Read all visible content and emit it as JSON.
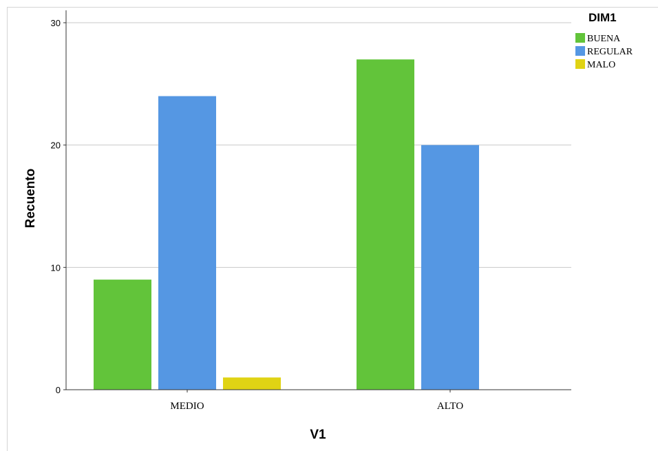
{
  "chart_data": {
    "type": "bar",
    "categories": [
      "MEDIO",
      "ALTO"
    ],
    "series": [
      {
        "name": "BUENA",
        "values": [
          9,
          27
        ],
        "color": "#62c43a"
      },
      {
        "name": "REGULAR",
        "values": [
          24,
          20
        ],
        "color": "#5597e3"
      },
      {
        "name": "MALO",
        "values": [
          1,
          0
        ],
        "color": "#e0d314"
      }
    ],
    "xlabel": "V1",
    "ylabel": "Recuento",
    "ylim": [
      0,
      30
    ],
    "yticks": [
      0,
      10,
      20,
      30
    ],
    "legend_title": "DIM1",
    "legend_position": "top-right",
    "grid": true
  }
}
